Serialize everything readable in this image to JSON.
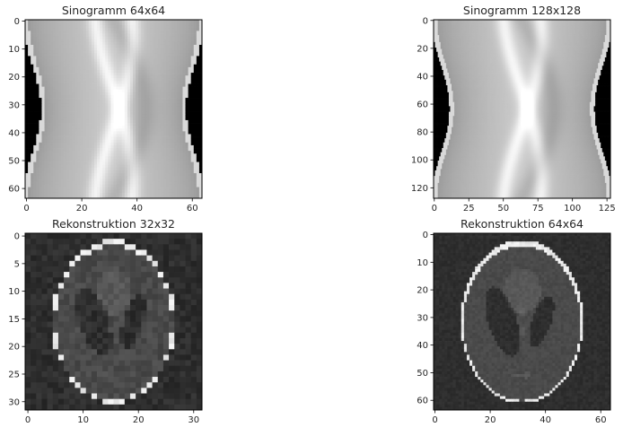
{
  "chart_data": [
    {
      "type": "heatmap",
      "title": "Sinogramm 64x64",
      "colormap": "gray",
      "grid": false,
      "xlim": [
        0,
        64
      ],
      "ylim": [
        64,
        0
      ],
      "xticks": [
        0,
        20,
        40,
        60
      ],
      "yticks": [
        0,
        10,
        20,
        30,
        40,
        50,
        60
      ],
      "content": "sinogram",
      "resolution": 64
    },
    {
      "type": "heatmap",
      "title": "Sinogramm 128x128",
      "colormap": "gray",
      "grid": false,
      "xlim": [
        0,
        128
      ],
      "ylim": [
        128,
        0
      ],
      "xticks": [
        0,
        25,
        50,
        75,
        100,
        125
      ],
      "yticks": [
        0,
        20,
        40,
        60,
        80,
        100,
        120
      ],
      "content": "sinogram",
      "resolution": 128
    },
    {
      "type": "heatmap",
      "title": "Rekonstruktion 32x32",
      "colormap": "gray",
      "grid": false,
      "xlim": [
        0,
        32
      ],
      "ylim": [
        32,
        0
      ],
      "xticks": [
        0,
        10,
        20,
        30
      ],
      "yticks": [
        0,
        5,
        10,
        15,
        20,
        25,
        30
      ],
      "content": "phantom",
      "resolution": 32
    },
    {
      "type": "heatmap",
      "title": "Rekonstruktion 64x64",
      "colormap": "gray",
      "grid": false,
      "xlim": [
        0,
        64
      ],
      "ylim": [
        64,
        0
      ],
      "xticks": [
        0,
        20,
        40,
        60
      ],
      "yticks": [
        0,
        10,
        20,
        30,
        40,
        50,
        60
      ],
      "content": "phantom",
      "resolution": 64
    }
  ]
}
